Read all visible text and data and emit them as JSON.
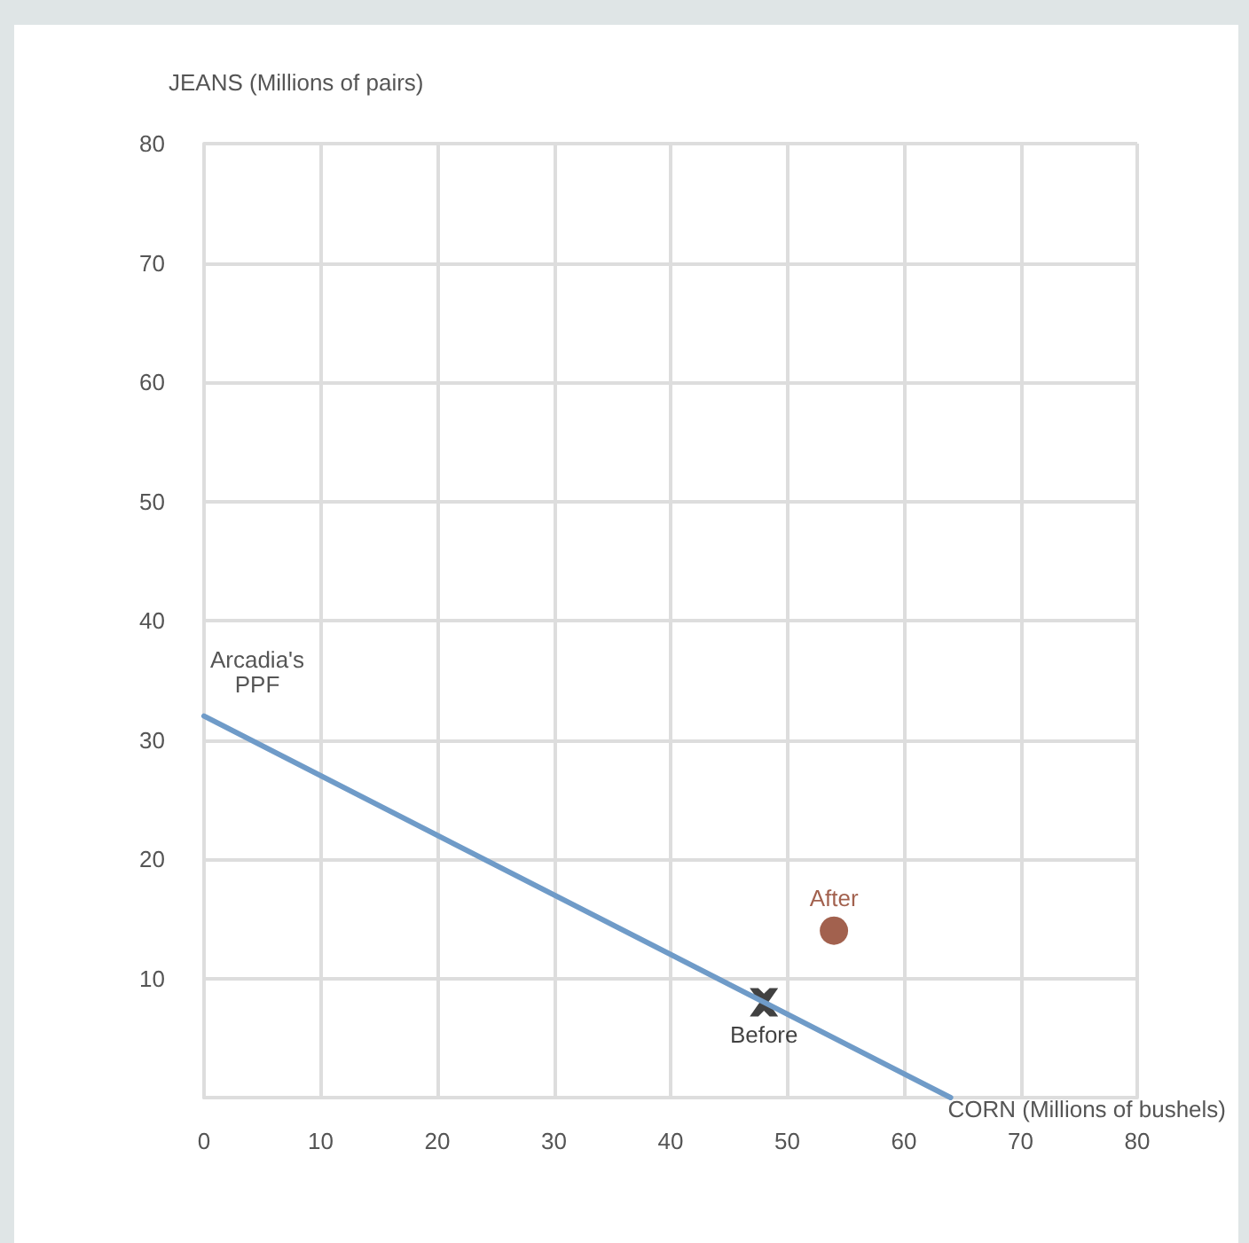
{
  "chart_data": {
    "type": "scatter",
    "xlabel": "CORN (Millions of bushels)",
    "ylabel": "JEANS (Millions of pairs)",
    "xlim": [
      0,
      80
    ],
    "xticks": [
      0,
      10,
      20,
      30,
      40,
      50,
      60,
      70,
      80
    ],
    "ylim": [
      0,
      80
    ],
    "yticks": [
      10,
      20,
      30,
      40,
      50,
      60,
      70,
      80
    ],
    "grid": true,
    "legend": false,
    "series": [
      {
        "name": "Arcadia's PPF",
        "type": "line",
        "color": "#6f9bc8",
        "x": [
          0,
          64
        ],
        "values": [
          32,
          0
        ],
        "marker": "none",
        "line_style": "solid"
      },
      {
        "name": "Before",
        "color": "#111111",
        "x": [
          48
        ],
        "values": [
          8
        ],
        "marker": "cross"
      },
      {
        "name": "After",
        "color": "#8b3a22",
        "x": [
          54
        ],
        "values": [
          14
        ],
        "marker": "circle"
      }
    ]
  }
}
